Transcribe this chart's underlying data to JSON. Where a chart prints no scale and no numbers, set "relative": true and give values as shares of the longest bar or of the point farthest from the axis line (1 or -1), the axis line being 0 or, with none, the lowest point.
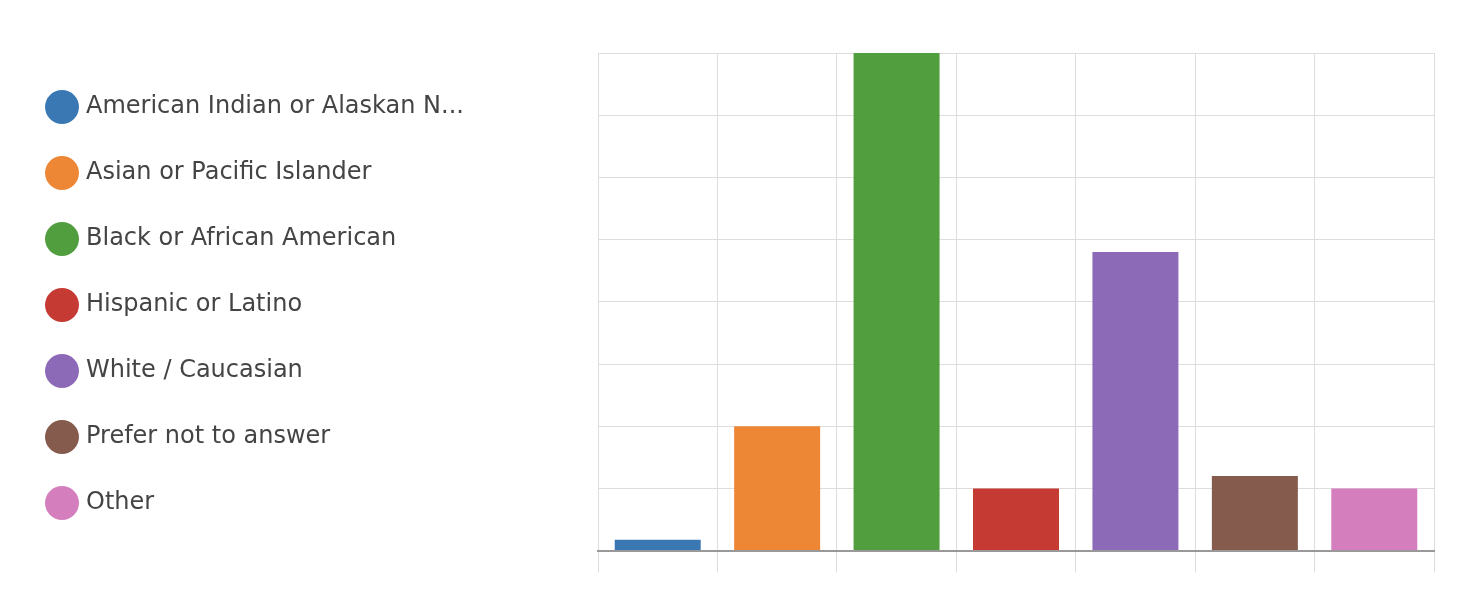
{
  "chart_data": {
    "type": "bar",
    "relative": true,
    "categories": [
      null,
      null,
      null,
      null,
      null,
      null,
      null
    ],
    "series": [
      {
        "name": "American Indian or Alaskan N...",
        "color": "#3a78b4",
        "values": [
          0.022,
          null,
          null,
          null,
          null,
          null,
          null
        ]
      },
      {
        "name": "Asian or Pacific Islander",
        "color": "#ee8735",
        "values": [
          null,
          0.25,
          null,
          null,
          null,
          null,
          null
        ]
      },
      {
        "name": "Black or African American",
        "color": "#519e3e",
        "values": [
          null,
          null,
          1,
          null,
          null,
          null,
          null
        ]
      },
      {
        "name": "Hispanic or Latino",
        "color": "#c53a32",
        "values": [
          null,
          null,
          null,
          0.125,
          null,
          null,
          null
        ]
      },
      {
        "name": "White / Caucasian",
        "color": "#8d6ab8",
        "values": [
          null,
          null,
          null,
          null,
          0.6,
          null,
          null
        ]
      },
      {
        "name": "Prefer not to answer",
        "color": "#845b4d",
        "values": [
          null,
          null,
          null,
          null,
          null,
          0.15,
          null
        ]
      },
      {
        "name": "Other",
        "color": "#d57ebe",
        "values": [
          null,
          null,
          null,
          null,
          null,
          null,
          0.125
        ]
      }
    ],
    "stacked": true,
    "grid": true,
    "legend": "left"
  }
}
